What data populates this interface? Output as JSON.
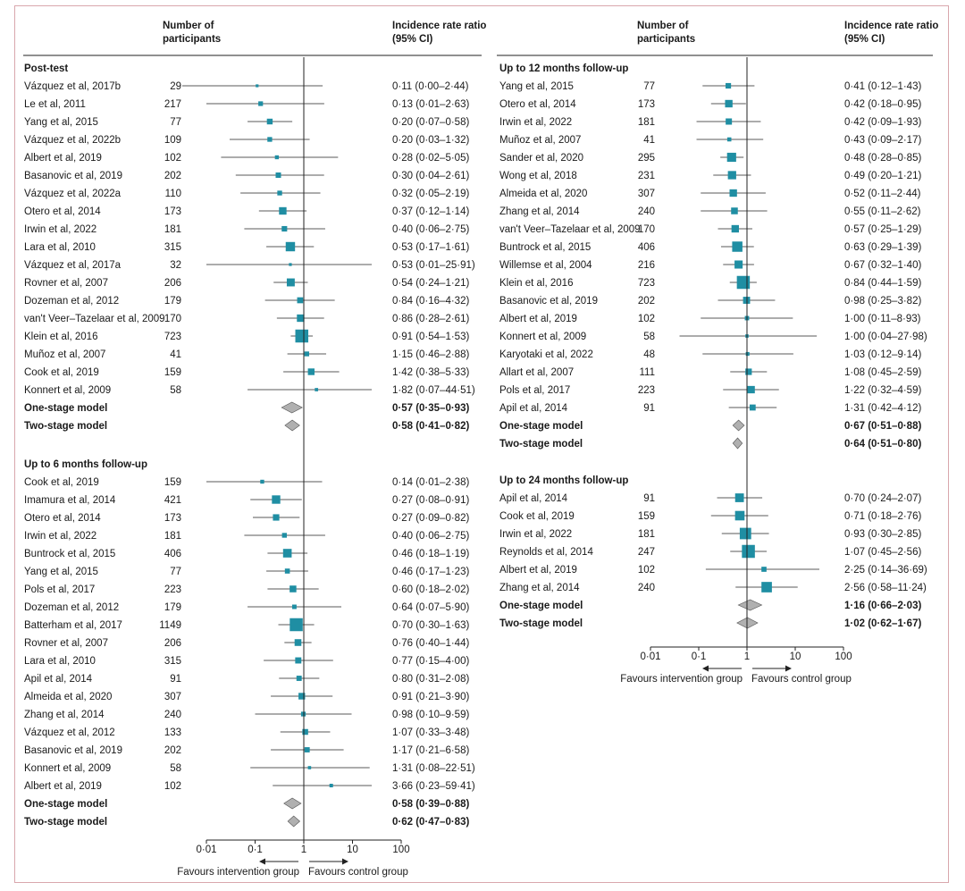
{
  "colors": {
    "box": "#1f8ea3",
    "diamond": "#b0b0b0",
    "line": "#222222",
    "border": "#d9a7ad"
  },
  "chart_data": {
    "type": "forest",
    "scale": "log",
    "x_ticks": [
      0.01,
      0.1,
      1,
      10,
      100
    ],
    "x_tick_labels": [
      "0·01",
      "0·1",
      "1",
      "10",
      "100"
    ],
    "favours_left": "Favours intervention group",
    "favours_right": "Favours control group",
    "headers": {
      "participants": [
        "Number of",
        "participants"
      ],
      "irr": [
        "Incidence rate ratio",
        "(95% CI)"
      ]
    },
    "panels": [
      {
        "sections": [
          {
            "title": "Post-test",
            "studies": [
              {
                "name": "Vázquez et al, 2017b",
                "n": "29",
                "est": 0.11,
                "lo": 0.0,
                "hi": 2.44,
                "label": "0·11 (0·00–2·44)"
              },
              {
                "name": "Le et al, 2011",
                "n": "217",
                "est": 0.13,
                "lo": 0.01,
                "hi": 2.63,
                "label": "0·13 (0·01–2·63)"
              },
              {
                "name": "Yang et al, 2015",
                "n": "77",
                "est": 0.2,
                "lo": 0.07,
                "hi": 0.58,
                "label": "0·20 (0·07–0·58)"
              },
              {
                "name": "Vázquez et al, 2022b",
                "n": "109",
                "est": 0.2,
                "lo": 0.03,
                "hi": 1.32,
                "label": "0·20 (0·03–1·32)"
              },
              {
                "name": "Albert et al, 2019",
                "n": "102",
                "est": 0.28,
                "lo": 0.02,
                "hi": 5.05,
                "label": "0·28 (0·02–5·05)"
              },
              {
                "name": "Basanovic et al, 2019",
                "n": "202",
                "est": 0.3,
                "lo": 0.04,
                "hi": 2.61,
                "label": "0·30 (0·04–2·61)"
              },
              {
                "name": "Vázquez et al, 2022a",
                "n": "110",
                "est": 0.32,
                "lo": 0.05,
                "hi": 2.19,
                "label": "0·32 (0·05–2·19)"
              },
              {
                "name": "Otero et al, 2014",
                "n": "173",
                "est": 0.37,
                "lo": 0.12,
                "hi": 1.14,
                "label": "0·37 (0·12–1·14)"
              },
              {
                "name": "Irwin et al, 2022",
                "n": "181",
                "est": 0.4,
                "lo": 0.06,
                "hi": 2.75,
                "label": "0·40 (0·06–2·75)"
              },
              {
                "name": "Lara et al, 2010",
                "n": "315",
                "est": 0.53,
                "lo": 0.17,
                "hi": 1.61,
                "label": "0·53 (0·17–1·61)"
              },
              {
                "name": "Vázquez et al, 2017a",
                "n": "32",
                "est": 0.53,
                "lo": 0.01,
                "hi": 25.91,
                "label": "0·53 (0·01–25·91)"
              },
              {
                "name": "Rovner et al, 2007",
                "n": "206",
                "est": 0.54,
                "lo": 0.24,
                "hi": 1.21,
                "label": "0·54 (0·24–1·21)"
              },
              {
                "name": "Dozeman et al, 2012",
                "n": "179",
                "est": 0.84,
                "lo": 0.16,
                "hi": 4.32,
                "label": "0·84 (0·16–4·32)"
              },
              {
                "name": "van't Veer–Tazelaar et al, 2009",
                "n": "170",
                "est": 0.86,
                "lo": 0.28,
                "hi": 2.61,
                "label": "0·86 (0·28–2·61)"
              },
              {
                "name": "Klein et al, 2016",
                "n": "723",
                "est": 0.91,
                "lo": 0.54,
                "hi": 1.53,
                "label": "0·91 (0·54–1·53)"
              },
              {
                "name": "Muñoz et al, 2007",
                "n": "41",
                "est": 1.15,
                "lo": 0.46,
                "hi": 2.88,
                "label": "1·15 (0·46–2·88)"
              },
              {
                "name": "Cook et al, 2019",
                "n": "159",
                "est": 1.42,
                "lo": 0.38,
                "hi": 5.33,
                "label": "1·42 (0·38–5·33)"
              },
              {
                "name": "Konnert et al, 2009",
                "n": "58",
                "est": 1.82,
                "lo": 0.07,
                "hi": 44.51,
                "label": "1·82 (0·07–44·51)"
              }
            ],
            "pooled": [
              {
                "name": "One-stage model",
                "est": 0.57,
                "lo": 0.35,
                "hi": 0.93,
                "label": "0·57 (0·35–0·93)"
              },
              {
                "name": "Two-stage model",
                "est": 0.58,
                "lo": 0.41,
                "hi": 0.82,
                "label": "0·58 (0·41–0·82)"
              }
            ]
          },
          {
            "title": "Up to 6 months follow-up",
            "studies": [
              {
                "name": "Cook et al, 2019",
                "n": "159",
                "est": 0.14,
                "lo": 0.01,
                "hi": 2.38,
                "label": "0·14 (0·01–2·38)"
              },
              {
                "name": "Imamura et al, 2014",
                "n": "421",
                "est": 0.27,
                "lo": 0.08,
                "hi": 0.91,
                "label": "0·27 (0·08–0·91)"
              },
              {
                "name": "Otero et al, 2014",
                "n": "173",
                "est": 0.27,
                "lo": 0.09,
                "hi": 0.82,
                "label": "0·27 (0·09–0·82)"
              },
              {
                "name": "Irwin et al, 2022",
                "n": "181",
                "est": 0.4,
                "lo": 0.06,
                "hi": 2.75,
                "label": "0·40 (0·06–2·75)"
              },
              {
                "name": "Buntrock et al, 2015",
                "n": "406",
                "est": 0.46,
                "lo": 0.18,
                "hi": 1.19,
                "label": "0·46 (0·18–1·19)"
              },
              {
                "name": "Yang et al, 2015",
                "n": "77",
                "est": 0.46,
                "lo": 0.17,
                "hi": 1.23,
                "label": "0·46 (0·17–1·23)"
              },
              {
                "name": "Pols et al, 2017",
                "n": "223",
                "est": 0.6,
                "lo": 0.18,
                "hi": 2.02,
                "label": "0·60 (0·18–2·02)"
              },
              {
                "name": "Dozeman et al, 2012",
                "n": "179",
                "est": 0.64,
                "lo": 0.07,
                "hi": 5.9,
                "label": "0·64 (0·07–5·90)"
              },
              {
                "name": "Batterham et al, 2017",
                "n": "1149",
                "est": 0.7,
                "lo": 0.3,
                "hi": 1.63,
                "label": "0·70 (0·30–1·63)"
              },
              {
                "name": "Rovner et al, 2007",
                "n": "206",
                "est": 0.76,
                "lo": 0.4,
                "hi": 1.44,
                "label": "0·76 (0·40–1·44)"
              },
              {
                "name": "Lara et al, 2010",
                "n": "315",
                "est": 0.77,
                "lo": 0.15,
                "hi": 4.0,
                "label": "0·77 (0·15–4·00)"
              },
              {
                "name": "Apil et al, 2014",
                "n": "91",
                "est": 0.8,
                "lo": 0.31,
                "hi": 2.08,
                "label": "0·80 (0·31–2·08)"
              },
              {
                "name": "Almeida et al, 2020",
                "n": "307",
                "est": 0.91,
                "lo": 0.21,
                "hi": 3.9,
                "label": "0·91 (0·21–3·90)"
              },
              {
                "name": "Zhang et al, 2014",
                "n": "240",
                "est": 0.98,
                "lo": 0.1,
                "hi": 9.59,
                "label": "0·98 (0·10–9·59)"
              },
              {
                "name": "Vázquez et al, 2012",
                "n": "133",
                "est": 1.07,
                "lo": 0.33,
                "hi": 3.48,
                "label": "1·07 (0·33–3·48)"
              },
              {
                "name": "Basanovic et al, 2019",
                "n": "202",
                "est": 1.17,
                "lo": 0.21,
                "hi": 6.58,
                "label": "1·17 (0·21–6·58)"
              },
              {
                "name": "Konnert et al, 2009",
                "n": "58",
                "est": 1.31,
                "lo": 0.08,
                "hi": 22.51,
                "label": "1·31 (0·08–22·51)"
              },
              {
                "name": "Albert et al, 2019",
                "n": "102",
                "est": 3.66,
                "lo": 0.23,
                "hi": 59.41,
                "label": "3·66 (0·23–59·41)"
              }
            ],
            "pooled": [
              {
                "name": "One-stage model",
                "est": 0.58,
                "lo": 0.39,
                "hi": 0.88,
                "label": "0·58 (0·39–0·88)"
              },
              {
                "name": "Two-stage model",
                "est": 0.62,
                "lo": 0.47,
                "hi": 0.83,
                "label": "0·62 (0·47–0·83)"
              }
            ]
          }
        ]
      },
      {
        "sections": [
          {
            "title": "Up to 12 months follow-up",
            "studies": [
              {
                "name": "Yang et al, 2015",
                "n": "77",
                "est": 0.41,
                "lo": 0.12,
                "hi": 1.43,
                "label": "0·41 (0·12–1·43)"
              },
              {
                "name": "Otero et al, 2014",
                "n": "173",
                "est": 0.42,
                "lo": 0.18,
                "hi": 0.95,
                "label": "0·42 (0·18–0·95)"
              },
              {
                "name": "Irwin et al, 2022",
                "n": "181",
                "est": 0.42,
                "lo": 0.09,
                "hi": 1.93,
                "label": "0·42 (0·09–1·93)"
              },
              {
                "name": "Muñoz et al, 2007",
                "n": "41",
                "est": 0.43,
                "lo": 0.09,
                "hi": 2.17,
                "label": "0·43 (0·09–2·17)"
              },
              {
                "name": "Sander et al, 2020",
                "n": "295",
                "est": 0.48,
                "lo": 0.28,
                "hi": 0.85,
                "label": "0·48 (0·28–0·85)"
              },
              {
                "name": "Wong et al, 2018",
                "n": "231",
                "est": 0.49,
                "lo": 0.2,
                "hi": 1.21,
                "label": "0·49 (0·20–1·21)"
              },
              {
                "name": "Almeida et al, 2020",
                "n": "307",
                "est": 0.52,
                "lo": 0.11,
                "hi": 2.44,
                "label": "0·52 (0·11–2·44)"
              },
              {
                "name": "Zhang et al, 2014",
                "n": "240",
                "est": 0.55,
                "lo": 0.11,
                "hi": 2.62,
                "label": "0·55 (0·11–2·62)"
              },
              {
                "name": "van't Veer–Tazelaar et al, 2009",
                "n": "170",
                "est": 0.57,
                "lo": 0.25,
                "hi": 1.29,
                "label": "0·57 (0·25–1·29)"
              },
              {
                "name": "Buntrock et al, 2015",
                "n": "406",
                "est": 0.63,
                "lo": 0.29,
                "hi": 1.39,
                "label": "0·63 (0·29–1·39)"
              },
              {
                "name": "Willemse et al, 2004",
                "n": "216",
                "est": 0.67,
                "lo": 0.32,
                "hi": 1.4,
                "label": "0·67 (0·32–1·40)"
              },
              {
                "name": "Klein et al, 2016",
                "n": "723",
                "est": 0.84,
                "lo": 0.44,
                "hi": 1.59,
                "label": "0·84 (0·44–1·59)"
              },
              {
                "name": "Basanovic et al, 2019",
                "n": "202",
                "est": 0.98,
                "lo": 0.25,
                "hi": 3.82,
                "label": "0·98 (0·25–3·82)"
              },
              {
                "name": "Albert et al, 2019",
                "n": "102",
                "est": 1.0,
                "lo": 0.11,
                "hi": 8.93,
                "label": "1·00 (0·11–8·93)"
              },
              {
                "name": "Konnert et al, 2009",
                "n": "58",
                "est": 1.0,
                "lo": 0.04,
                "hi": 27.98,
                "label": "1·00 (0·04–27·98)"
              },
              {
                "name": "Karyotaki et al, 2022",
                "n": "48",
                "est": 1.03,
                "lo": 0.12,
                "hi": 9.14,
                "label": "1·03 (0·12–9·14)"
              },
              {
                "name": "Allart et al, 2007",
                "n": "111",
                "est": 1.08,
                "lo": 0.45,
                "hi": 2.59,
                "label": "1·08 (0·45–2·59)"
              },
              {
                "name": "Pols et al, 2017",
                "n": "223",
                "est": 1.22,
                "lo": 0.32,
                "hi": 4.59,
                "label": "1·22 (0·32–4·59)"
              },
              {
                "name": "Apil et al, 2014",
                "n": "91",
                "est": 1.31,
                "lo": 0.42,
                "hi": 4.12,
                "label": "1·31 (0·42–4·12)"
              }
            ],
            "pooled": [
              {
                "name": "One-stage model",
                "est": 0.67,
                "lo": 0.51,
                "hi": 0.88,
                "label": "0·67 (0·51–0·88)"
              },
              {
                "name": "Two-stage model",
                "est": 0.64,
                "lo": 0.51,
                "hi": 0.8,
                "label": "0·64 (0·51–0·80)"
              }
            ]
          },
          {
            "title": "Up to 24 months follow-up",
            "studies": [
              {
                "name": "Apil et al, 2014",
                "n": "91",
                "est": 0.7,
                "lo": 0.24,
                "hi": 2.07,
                "label": "0·70 (0·24–2·07)"
              },
              {
                "name": "Cook et al, 2019",
                "n": "159",
                "est": 0.71,
                "lo": 0.18,
                "hi": 2.76,
                "label": "0·71 (0·18–2·76)"
              },
              {
                "name": "Irwin et al, 2022",
                "n": "181",
                "est": 0.93,
                "lo": 0.3,
                "hi": 2.85,
                "label": "0·93 (0·30–2·85)"
              },
              {
                "name": "Reynolds et al, 2014",
                "n": "247",
                "est": 1.07,
                "lo": 0.45,
                "hi": 2.56,
                "label": "1·07 (0·45–2·56)"
              },
              {
                "name": "Albert et al, 2019",
                "n": "102",
                "est": 2.25,
                "lo": 0.14,
                "hi": 36.69,
                "label": "2·25 (0·14–36·69)"
              },
              {
                "name": "Zhang et al, 2014",
                "n": "240",
                "est": 2.56,
                "lo": 0.58,
                "hi": 11.24,
                "label": "2·56 (0·58–11·24)"
              }
            ],
            "pooled": [
              {
                "name": "One-stage model",
                "est": 1.16,
                "lo": 0.66,
                "hi": 2.03,
                "label": "1·16 (0·66–2·03)"
              },
              {
                "name": "Two-stage model",
                "est": 1.02,
                "lo": 0.62,
                "hi": 1.67,
                "label": "1·02 (0·62–1·67)"
              }
            ]
          }
        ]
      }
    ]
  }
}
